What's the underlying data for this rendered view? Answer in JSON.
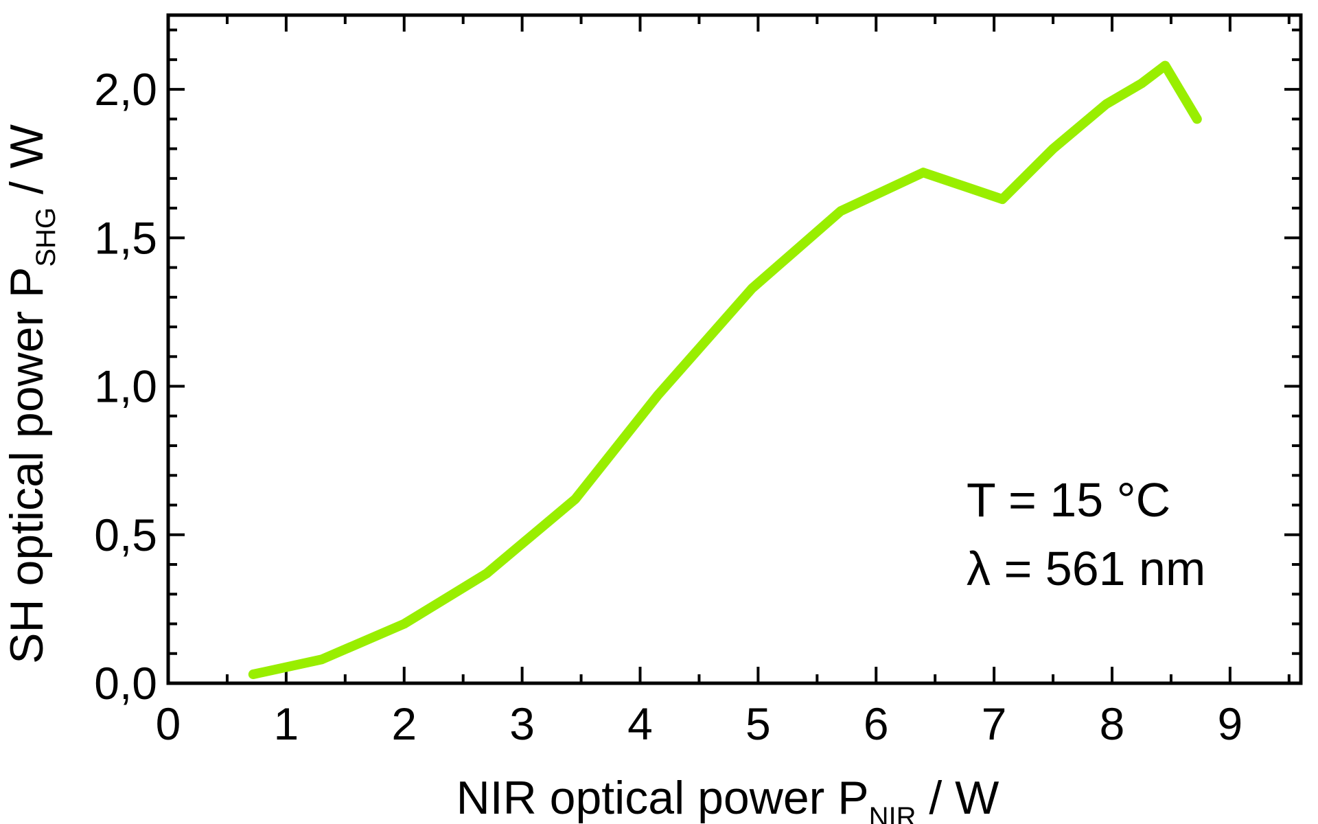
{
  "chart_data": {
    "type": "line",
    "title": "",
    "xlabel": {
      "main": "NIR optical power P",
      "subscript": "NIR",
      "unit": " / W"
    },
    "ylabel": {
      "main": "SH optical power P",
      "subscript": "SHG",
      "unit": " / W"
    },
    "xlim": [
      0,
      9.6
    ],
    "ylim": [
      0,
      2.25
    ],
    "x_ticks": [
      0,
      1,
      2,
      3,
      4,
      5,
      6,
      7,
      8,
      9
    ],
    "x_tick_labels": [
      "0",
      "1",
      "2",
      "3",
      "4",
      "5",
      "6",
      "7",
      "8",
      "9"
    ],
    "y_ticks": [
      0,
      0.5,
      1.0,
      1.5,
      2.0
    ],
    "y_tick_labels": [
      "0,0",
      "0,5",
      "1,0",
      "1,5",
      "2,0"
    ],
    "grid": false,
    "series": [
      {
        "color": "#99ee00",
        "x": [
          0.72,
          1.3,
          2.0,
          2.7,
          3.45,
          4.15,
          4.95,
          5.7,
          6.4,
          7.07,
          7.5,
          7.95,
          8.25,
          8.45,
          8.72
        ],
        "y": [
          0.03,
          0.08,
          0.2,
          0.37,
          0.62,
          0.97,
          1.33,
          1.59,
          1.72,
          1.63,
          1.8,
          1.95,
          2.02,
          2.08,
          1.9
        ]
      }
    ],
    "annotations": [
      {
        "id": "temperature",
        "text": "T = 15 °C"
      },
      {
        "id": "wavelength",
        "text": "λ = 561 nm"
      }
    ]
  }
}
